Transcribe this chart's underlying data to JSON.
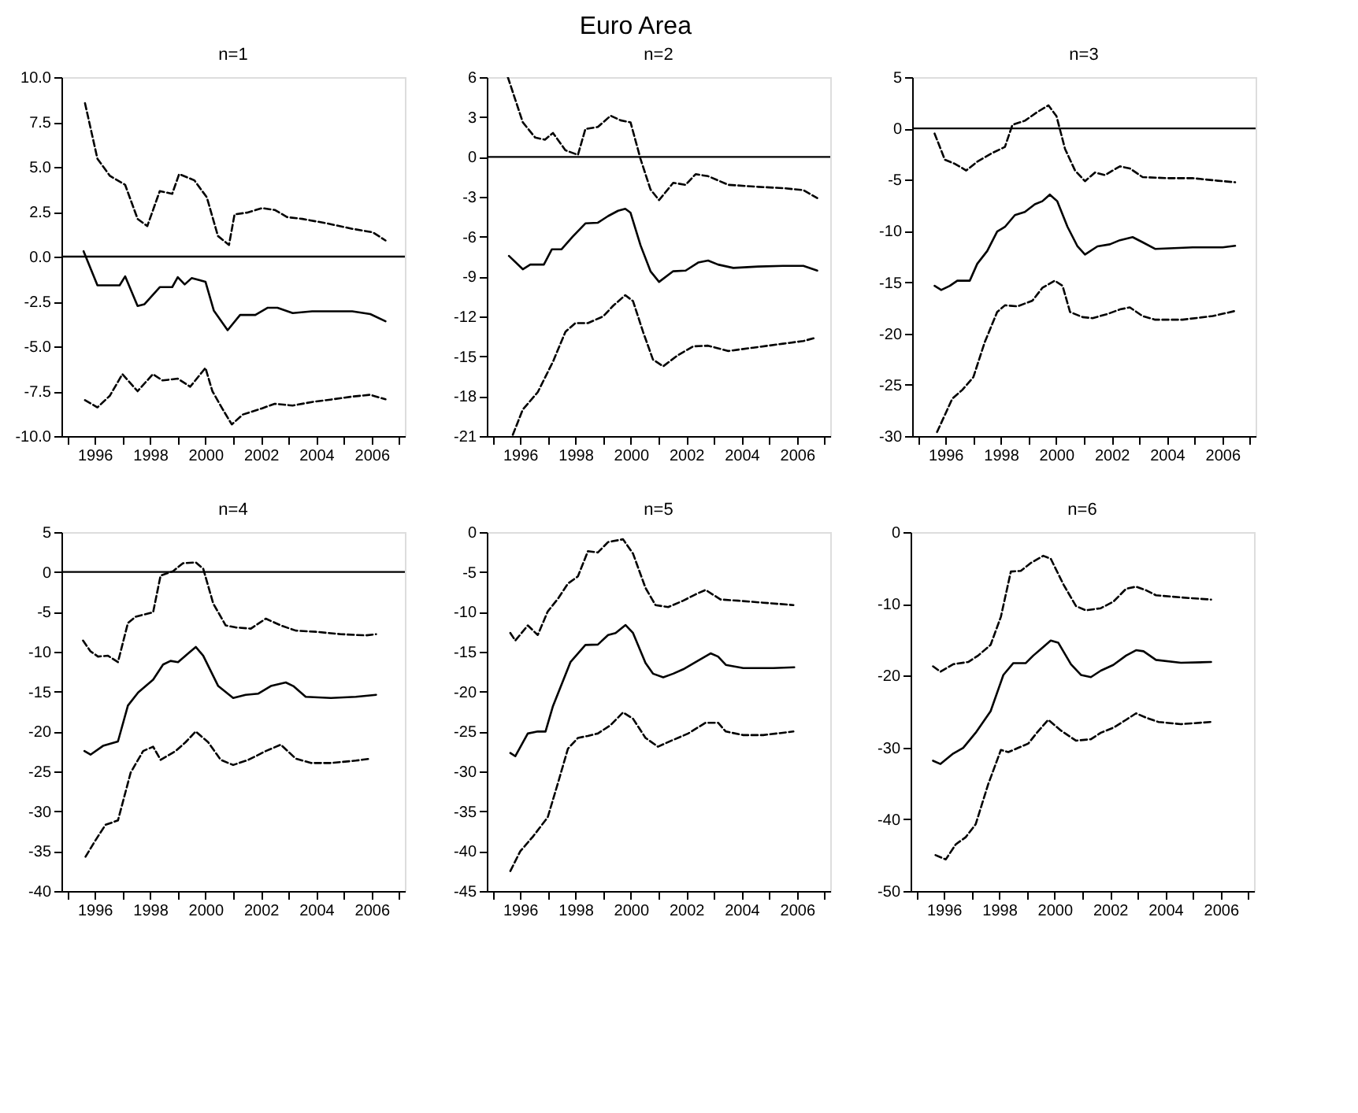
{
  "chart_data": [
    {
      "type": "line",
      "title": "n=1",
      "annotations": [
        "Euro Area"
      ],
      "xlim": [
        1994.8,
        2007.2
      ],
      "xticks": [
        {
          "value": 1995,
          "label": null
        },
        1996,
        {
          "value": 1997,
          "label": null
        },
        1998,
        {
          "value": 1999,
          "label": null
        },
        2000,
        {
          "value": 2001,
          "label": null
        },
        2002,
        {
          "value": 2003,
          "label": null
        },
        2004,
        {
          "value": 2005,
          "label": null
        },
        2006,
        {
          "value": 2007,
          "label": null
        }
      ],
      "ylim": [
        -10,
        10
      ],
      "yticks": [
        {
          "value": -10,
          "label": "-10.0"
        },
        {
          "value": -7.5,
          "label": "-7.5"
        },
        {
          "value": -5,
          "label": "-5.0"
        },
        {
          "value": -2.5,
          "label": "-2.5"
        },
        {
          "value": 0,
          "label": "0.0"
        },
        {
          "value": 2.5,
          "label": "2.5"
        },
        {
          "value": 5,
          "label": "5.0"
        },
        {
          "value": 7.5,
          "label": "7.5"
        },
        {
          "value": 10,
          "label": "10.0"
        }
      ],
      "ref_lines": [
        {
          "axis": "y",
          "value": 0,
          "color": "#000000"
        }
      ],
      "series": [
        {
          "color": "#000000",
          "line_style": "solid",
          "x": [
            1995.6,
            1996.1,
            1996.9,
            1997.1,
            1997.55,
            1997.8,
            1998.35,
            1998.8,
            1999.0,
            1999.25,
            1999.5,
            2000.0,
            2000.3,
            2000.8,
            2001.25,
            2001.8,
            2002.25,
            2002.6,
            2003.15,
            2003.85,
            2005.3,
            2005.95,
            2006.5
          ],
          "values": [
            0.3,
            -1.6,
            -1.6,
            -1.1,
            -2.75,
            -2.65,
            -1.7,
            -1.7,
            -1.15,
            -1.55,
            -1.2,
            -1.4,
            -3.0,
            -4.1,
            -3.25,
            -3.25,
            -2.85,
            -2.85,
            -3.15,
            -3.05,
            -3.05,
            -3.2,
            -3.6
          ]
        },
        {
          "color": "#000000",
          "line_style": "dashed",
          "x": [
            1995.65,
            1996.1,
            1996.55,
            1997.1,
            1997.55,
            1997.9,
            1998.35,
            1998.8,
            1999.05,
            1999.6,
            2000.05,
            2000.45,
            2000.85,
            2001.05,
            2001.5,
            2002.05,
            2002.5,
            2002.95,
            2003.5,
            2004.4,
            2005.3,
            2006.05,
            2006.5
          ],
          "values": [
            8.55,
            5.45,
            4.5,
            4.0,
            2.1,
            1.7,
            3.65,
            3.5,
            4.6,
            4.25,
            3.3,
            1.15,
            0.65,
            2.35,
            2.45,
            2.7,
            2.6,
            2.2,
            2.1,
            1.85,
            1.55,
            1.35,
            0.9
          ]
        },
        {
          "color": "#000000",
          "line_style": "dashed",
          "x": [
            1995.65,
            1996.1,
            1996.55,
            1997.0,
            1997.55,
            1998.1,
            1998.45,
            1999.0,
            1999.45,
            2000.0,
            2000.25,
            2000.6,
            2000.95,
            2001.35,
            2002.05,
            2002.5,
            2003.15,
            2003.85,
            2004.6,
            2005.3,
            2005.95,
            2006.5
          ],
          "values": [
            -8.0,
            -8.4,
            -7.75,
            -6.55,
            -7.5,
            -6.55,
            -6.9,
            -6.8,
            -7.25,
            -6.2,
            -7.5,
            -8.45,
            -9.35,
            -8.8,
            -8.45,
            -8.2,
            -8.3,
            -8.1,
            -7.95,
            -7.8,
            -7.7,
            -7.95
          ]
        }
      ]
    },
    {
      "type": "line",
      "title": "n=2",
      "xlim": [
        1994.8,
        2007.2
      ],
      "xticks": [
        {
          "value": 1995,
          "label": null
        },
        1996,
        {
          "value": 1997,
          "label": null
        },
        1998,
        {
          "value": 1999,
          "label": null
        },
        2000,
        {
          "value": 2001,
          "label": null
        },
        2002,
        {
          "value": 2003,
          "label": null
        },
        2004,
        {
          "value": 2005,
          "label": null
        },
        2006,
        {
          "value": 2007,
          "label": null
        }
      ],
      "ylim": [
        -21,
        6
      ],
      "yticks": [
        -21,
        -18,
        -15,
        -12,
        -9,
        -6,
        -3,
        0,
        3,
        6
      ],
      "ref_lines": [
        {
          "axis": "y",
          "value": 0,
          "color": "#000000"
        }
      ],
      "series": [
        {
          "color": "#000000",
          "line_style": "solid",
          "x": [
            1995.6,
            1996.1,
            1996.37,
            1996.86,
            1997.15,
            1997.5,
            1997.9,
            1998.36,
            1998.81,
            1999.18,
            1999.54,
            1999.8,
            1999.99,
            2000.35,
            2000.71,
            2001.02,
            2001.53,
            2001.98,
            2002.43,
            2002.79,
            2003.15,
            2003.7,
            2004.6,
            2005.5,
            2006.23,
            2006.73
          ],
          "values": [
            -7.45,
            -8.45,
            -8.1,
            -8.1,
            -6.95,
            -6.95,
            -6.0,
            -5.0,
            -4.95,
            -4.45,
            -4.05,
            -3.9,
            -4.2,
            -6.65,
            -8.6,
            -9.4,
            -8.6,
            -8.55,
            -7.95,
            -7.8,
            -8.1,
            -8.35,
            -8.25,
            -8.2,
            -8.2,
            -8.55
          ]
        },
        {
          "color": "#000000",
          "line_style": "dashed",
          "x": [
            1995.56,
            1996.1,
            1996.55,
            1996.9,
            1997.19,
            1997.64,
            1998.09,
            1998.36,
            1998.81,
            1999.27,
            1999.63,
            1999.99,
            2000.35,
            2000.71,
            2001.02,
            2001.53,
            2001.98,
            2002.34,
            2002.79,
            2003.52,
            2004.6,
            2005.5,
            2006.23,
            2006.73
          ],
          "values": [
            6.0,
            2.6,
            1.45,
            1.3,
            1.8,
            0.5,
            0.15,
            2.1,
            2.25,
            3.1,
            2.75,
            2.6,
            -0.15,
            -2.45,
            -3.25,
            -1.95,
            -2.1,
            -1.3,
            -1.45,
            -2.1,
            -2.25,
            -2.35,
            -2.5,
            -3.1
          ]
        },
        {
          "color": "#000000",
          "line_style": "dashed",
          "x": [
            1995.74,
            1996.1,
            1996.64,
            1997.19,
            1997.64,
            1998.0,
            1998.45,
            1999.0,
            1999.36,
            1999.8,
            2000.08,
            2000.44,
            2000.8,
            2001.17,
            2001.71,
            2002.25,
            2002.79,
            2003.52,
            2004.42,
            2005.5,
            2006.23,
            2006.68
          ],
          "values": [
            -20.9,
            -19.0,
            -17.7,
            -15.4,
            -13.15,
            -12.5,
            -12.5,
            -12.0,
            -11.2,
            -10.4,
            -10.85,
            -13.15,
            -15.25,
            -15.75,
            -14.9,
            -14.25,
            -14.2,
            -14.6,
            -14.35,
            -14.05,
            -13.85,
            -13.6
          ]
        }
      ]
    },
    {
      "type": "line",
      "title": "n=3",
      "xlim": [
        1994.8,
        2007.2
      ],
      "xticks": [
        {
          "value": 1995,
          "label": null
        },
        1996,
        {
          "value": 1997,
          "label": null
        },
        1998,
        {
          "value": 1999,
          "label": null
        },
        2000,
        {
          "value": 2001,
          "label": null
        },
        2002,
        {
          "value": 2003,
          "label": null
        },
        2004,
        {
          "value": 2005,
          "label": null
        },
        2006,
        {
          "value": 2007,
          "label": null
        }
      ],
      "ylim": [
        -30,
        5
      ],
      "yticks": [
        -30,
        -25,
        -20,
        -15,
        -10,
        -5,
        0,
        5
      ],
      "ref_lines": [
        {
          "axis": "y",
          "value": 0,
          "color": "#000000"
        }
      ],
      "series": [
        {
          "color": "#000000",
          "line_style": "solid",
          "x": [
            1995.61,
            1995.85,
            1996.16,
            1996.43,
            1996.88,
            1997.15,
            1997.51,
            1997.87,
            1998.15,
            1998.51,
            1998.87,
            1999.23,
            1999.5,
            1999.77,
            2000.04,
            2000.41,
            2000.77,
            2001.04,
            2001.49,
            2001.94,
            2002.3,
            2002.76,
            2003.12,
            2003.57,
            2004.93,
            2006.01,
            2006.46
          ],
          "values": [
            -15.35,
            -15.75,
            -15.35,
            -14.85,
            -14.85,
            -13.2,
            -11.95,
            -10.05,
            -9.6,
            -8.45,
            -8.15,
            -7.4,
            -7.1,
            -6.45,
            -7.1,
            -9.6,
            -11.5,
            -12.3,
            -11.5,
            -11.3,
            -10.9,
            -10.6,
            -11.1,
            -11.75,
            -11.6,
            -11.6,
            -11.45
          ]
        },
        {
          "color": "#000000",
          "line_style": "dashed",
          "x": [
            1995.61,
            1995.98,
            1996.34,
            1996.75,
            1997.15,
            1997.69,
            1998.15,
            1998.42,
            1998.87,
            1999.32,
            1999.72,
            2000.01,
            2000.32,
            2000.68,
            2001.04,
            2001.4,
            2001.76,
            2002.3,
            2002.66,
            2003.12,
            2004.02,
            2004.93,
            2005.83,
            2006.46
          ],
          "values": [
            -0.5,
            -3.05,
            -3.45,
            -4.1,
            -3.25,
            -2.4,
            -1.8,
            0.35,
            0.75,
            1.6,
            2.25,
            1.2,
            -2.0,
            -4.1,
            -5.15,
            -4.3,
            -4.55,
            -3.7,
            -3.9,
            -4.75,
            -4.85,
            -4.85,
            -5.1,
            -5.25
          ]
        },
        {
          "color": "#000000",
          "line_style": "dashed",
          "x": [
            1995.7,
            1996.25,
            1996.61,
            1997.01,
            1997.42,
            1997.87,
            1998.15,
            1998.6,
            1999.14,
            1999.5,
            1999.95,
            2000.23,
            2000.5,
            2000.95,
            2001.31,
            2001.85,
            2002.3,
            2002.66,
            2003.12,
            2003.57,
            2004.56,
            2005.65,
            2006.46
          ],
          "values": [
            -29.6,
            -26.35,
            -25.5,
            -24.25,
            -20.85,
            -17.9,
            -17.25,
            -17.35,
            -16.8,
            -15.55,
            -14.85,
            -15.35,
            -17.9,
            -18.4,
            -18.5,
            -18.1,
            -17.65,
            -17.45,
            -18.3,
            -18.65,
            -18.65,
            -18.3,
            -17.8
          ]
        }
      ]
    },
    {
      "type": "line",
      "title": "n=4",
      "xlim": [
        1994.8,
        2007.2
      ],
      "xticks": [
        {
          "value": 1995,
          "label": null
        },
        1996,
        {
          "value": 1997,
          "label": null
        },
        1998,
        {
          "value": 1999,
          "label": null
        },
        2000,
        {
          "value": 2001,
          "label": null
        },
        2002,
        {
          "value": 2003,
          "label": null
        },
        2004,
        {
          "value": 2005,
          "label": null
        },
        2006,
        {
          "value": 2007,
          "label": null
        }
      ],
      "ylim": [
        -40,
        5
      ],
      "yticks": [
        -40,
        -35,
        -30,
        -25,
        -20,
        -15,
        -10,
        -5,
        0,
        5
      ],
      "ref_lines": [
        {
          "axis": "y",
          "value": 0,
          "color": "#000000"
        }
      ],
      "series": [
        {
          "color": "#000000",
          "line_style": "solid",
          "x": [
            1995.63,
            1995.85,
            1996.3,
            1996.84,
            1997.2,
            1997.57,
            1998.11,
            1998.47,
            1998.74,
            1999.01,
            1999.38,
            1999.65,
            1999.92,
            2000.46,
            2001.0,
            2001.45,
            2001.91,
            2002.36,
            2002.9,
            2003.17,
            2003.62,
            2004.53,
            2005.43,
            2006.16
          ],
          "values": [
            -22.45,
            -22.9,
            -21.8,
            -21.25,
            -16.75,
            -15.1,
            -13.5,
            -11.6,
            -11.15,
            -11.3,
            -10.2,
            -9.4,
            -10.5,
            -14.3,
            -15.8,
            -15.4,
            -15.25,
            -14.3,
            -13.85,
            -14.3,
            -15.65,
            -15.8,
            -15.65,
            -15.4
          ]
        },
        {
          "color": "#000000",
          "line_style": "dashed",
          "x": [
            1995.58,
            1995.85,
            1996.12,
            1996.48,
            1996.84,
            1997.2,
            1997.48,
            1998.11,
            1998.38,
            1998.83,
            1999.19,
            1999.65,
            1999.92,
            2000.28,
            2000.73,
            2001.09,
            2001.64,
            2002.18,
            2002.72,
            2003.26,
            2003.99,
            2004.89,
            2005.79,
            2006.16
          ],
          "values": [
            -8.6,
            -9.95,
            -10.6,
            -10.5,
            -11.3,
            -6.4,
            -5.6,
            -5.05,
            -0.45,
            0.1,
            1.1,
            1.2,
            0.4,
            -3.95,
            -6.7,
            -6.95,
            -7.1,
            -5.85,
            -6.7,
            -7.35,
            -7.5,
            -7.8,
            -7.95,
            -7.8
          ]
        },
        {
          "color": "#000000",
          "line_style": "dashed",
          "x": [
            1995.67,
            1996.0,
            1996.39,
            1996.84,
            1997.3,
            1997.75,
            1998.11,
            1998.38,
            1998.92,
            1999.28,
            1999.65,
            2000.1,
            2000.55,
            2001.0,
            2001.55,
            2002.18,
            2002.72,
            2003.26,
            2003.81,
            2004.53,
            2005.43,
            2005.98
          ],
          "values": [
            -35.7,
            -33.8,
            -31.7,
            -31.15,
            -25.15,
            -22.45,
            -21.9,
            -23.55,
            -22.45,
            -21.35,
            -20.0,
            -21.35,
            -23.55,
            -24.2,
            -23.55,
            -22.45,
            -21.65,
            -23.4,
            -23.95,
            -23.95,
            -23.65,
            -23.4
          ]
        }
      ]
    },
    {
      "type": "line",
      "title": "n=5",
      "xlim": [
        1994.8,
        2007.2
      ],
      "xticks": [
        {
          "value": 1995,
          "label": null
        },
        1996,
        {
          "value": 1997,
          "label": null
        },
        1998,
        {
          "value": 1999,
          "label": null
        },
        2000,
        {
          "value": 2001,
          "label": null
        },
        2002,
        {
          "value": 2003,
          "label": null
        },
        2004,
        {
          "value": 2005,
          "label": null
        },
        2006,
        {
          "value": 2007,
          "label": null
        }
      ],
      "ylim": [
        -45,
        0
      ],
      "yticks": [
        -45,
        -40,
        -35,
        -30,
        -25,
        -20,
        -15,
        -10,
        -5,
        0
      ],
      "series": [
        {
          "color": "#000000",
          "line_style": "solid",
          "x": [
            1995.65,
            1995.83,
            1996.28,
            1996.64,
            1996.92,
            1997.19,
            1997.82,
            1998.36,
            1998.81,
            1999.18,
            1999.45,
            1999.81,
            2000.08,
            2000.53,
            2000.8,
            2001.17,
            2001.53,
            2001.89,
            2002.34,
            2002.88,
            2003.15,
            2003.43,
            2004.06,
            2005.14,
            2005.9
          ],
          "values": [
            -27.7,
            -28.1,
            -25.25,
            -25.0,
            -25.0,
            -21.8,
            -16.3,
            -14.15,
            -14.1,
            -12.9,
            -12.65,
            -11.65,
            -12.65,
            -16.4,
            -17.75,
            -18.2,
            -17.75,
            -17.2,
            -16.3,
            -15.2,
            -15.6,
            -16.65,
            -17.05,
            -17.05,
            -16.95
          ]
        },
        {
          "color": "#000000",
          "line_style": "dashed",
          "x": [
            1995.65,
            1995.83,
            1996.28,
            1996.64,
            1997.0,
            1997.37,
            1997.73,
            1998.09,
            1998.45,
            1998.81,
            1999.18,
            1999.72,
            2000.08,
            2000.53,
            2000.89,
            2001.35,
            2001.89,
            2002.34,
            2002.7,
            2003.24,
            2003.88,
            2004.78,
            2005.87
          ],
          "values": [
            -12.65,
            -13.6,
            -11.7,
            -12.9,
            -9.95,
            -8.35,
            -6.45,
            -5.55,
            -2.4,
            -2.55,
            -1.25,
            -0.9,
            -2.7,
            -7.0,
            -9.15,
            -9.4,
            -8.6,
            -7.8,
            -7.25,
            -8.45,
            -8.6,
            -8.85,
            -9.15
          ]
        },
        {
          "color": "#000000",
          "line_style": "dashed",
          "x": [
            1995.65,
            1996.01,
            1996.46,
            1997.0,
            1997.37,
            1997.73,
            1998.09,
            1998.45,
            1998.81,
            1999.27,
            1999.72,
            2000.08,
            2000.53,
            2000.98,
            2001.53,
            2002.07,
            2002.7,
            2003.15,
            2003.43,
            2004.06,
            2004.78,
            2005.87
          ],
          "values": [
            -42.5,
            -40.0,
            -38.2,
            -35.75,
            -31.45,
            -27.15,
            -25.8,
            -25.55,
            -25.25,
            -24.2,
            -22.6,
            -23.4,
            -25.8,
            -26.9,
            -26.05,
            -25.25,
            -23.9,
            -23.9,
            -25.0,
            -25.45,
            -25.45,
            -25.0
          ]
        }
      ]
    },
    {
      "type": "line",
      "title": "n=6",
      "xlim": [
        1994.8,
        2007.2
      ],
      "xticks": [
        {
          "value": 1995,
          "label": null
        },
        1996,
        {
          "value": 1997,
          "label": null
        },
        1998,
        {
          "value": 1999,
          "label": null
        },
        2000,
        {
          "value": 2001,
          "label": null
        },
        2002,
        {
          "value": 2003,
          "label": null
        },
        2004,
        {
          "value": 2005,
          "label": null
        },
        2006,
        {
          "value": 2007,
          "label": null
        }
      ],
      "ylim": [
        -50,
        0
      ],
      "yticks": [
        -50,
        -40,
        -30,
        -20,
        -10,
        0
      ],
      "series": [
        {
          "color": "#000000",
          "line_style": "solid",
          "x": [
            1995.61,
            1995.88,
            1996.34,
            1996.7,
            1997.15,
            1997.69,
            1998.15,
            1998.51,
            1998.96,
            1999.23,
            1999.5,
            1999.86,
            2000.13,
            2000.59,
            2000.95,
            2001.31,
            2001.67,
            2002.12,
            2002.58,
            2002.94,
            2003.21,
            2003.66,
            2004.56,
            2005.65
          ],
          "values": [
            -31.85,
            -32.3,
            -30.85,
            -30.05,
            -27.95,
            -24.95,
            -19.9,
            -18.25,
            -18.25,
            -17.2,
            -16.3,
            -15.1,
            -15.4,
            -18.4,
            -19.9,
            -20.2,
            -19.3,
            -18.5,
            -17.2,
            -16.45,
            -16.6,
            -17.8,
            -18.2,
            -18.1
          ]
        },
        {
          "color": "#000000",
          "line_style": "dashed",
          "x": [
            1995.61,
            1995.88,
            1996.34,
            1996.88,
            1997.24,
            1997.69,
            1998.06,
            1998.42,
            1998.78,
            1999.14,
            1999.59,
            1999.86,
            2000.32,
            2000.77,
            2001.13,
            2001.67,
            2002.12,
            2002.58,
            2002.94,
            2003.3,
            2003.66,
            2004.56,
            2005.65
          ],
          "values": [
            -18.7,
            -19.45,
            -18.4,
            -18.1,
            -17.2,
            -15.7,
            -11.8,
            -5.5,
            -5.4,
            -4.3,
            -3.3,
            -3.7,
            -7.3,
            -10.3,
            -10.9,
            -10.6,
            -9.7,
            -7.9,
            -7.6,
            -8.1,
            -8.8,
            -9.1,
            -9.4
          ]
        },
        {
          "color": "#000000",
          "line_style": "dashed",
          "x": [
            1995.7,
            1996.07,
            1996.43,
            1996.79,
            1997.15,
            1997.6,
            1998.06,
            1998.33,
            1998.69,
            1999.05,
            1999.36,
            1999.77,
            2000.23,
            2000.77,
            2001.31,
            2001.67,
            2002.12,
            2002.58,
            2002.94,
            2003.3,
            2003.75,
            2004.56,
            2005.65
          ],
          "values": [
            -45.0,
            -45.6,
            -43.5,
            -42.5,
            -40.7,
            -35.15,
            -30.35,
            -30.65,
            -30.05,
            -29.45,
            -27.95,
            -26.15,
            -27.65,
            -29.05,
            -28.85,
            -27.95,
            -27.25,
            -26.15,
            -25.25,
            -25.85,
            -26.45,
            -26.75,
            -26.45
          ]
        }
      ]
    }
  ]
}
